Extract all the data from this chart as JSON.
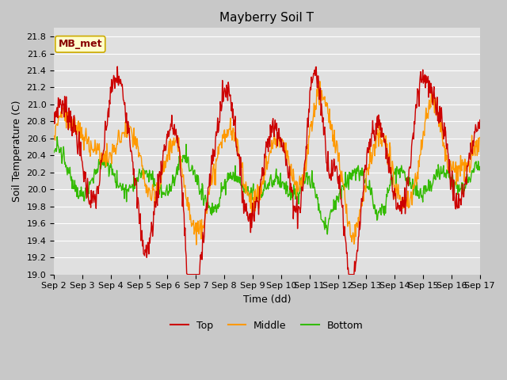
{
  "title": "Mayberry Soil T",
  "xlabel": "Time (dd)",
  "ylabel": "Soil Temperature (C)",
  "ylim": [
    19.0,
    21.9
  ],
  "xlim": [
    0,
    15
  ],
  "x_tick_labels": [
    "Sep 2",
    "Sep 3",
    "Sep 4",
    "Sep 5",
    "Sep 6",
    "Sep 7",
    "Sep 8",
    "Sep 9",
    "Sep 10",
    "Sep 11",
    "Sep 12",
    "Sep 13",
    "Sep 14",
    "Sep 15",
    "Sep 16",
    "Sep 17"
  ],
  "legend_entries": [
    "Top",
    "Middle",
    "Bottom"
  ],
  "line_colors": [
    "#cc0000",
    "#ff9900",
    "#33bb00"
  ],
  "annotation_text": "MB_met",
  "annotation_color": "#880000",
  "annotation_bg": "#ffffcc",
  "annotation_border": "#ccaa00",
  "fig_bg": "#c8c8c8",
  "plot_bg": "#e0e0e0",
  "grid_color": "#ffffff",
  "title_fontsize": 11,
  "axis_fontsize": 9,
  "tick_fontsize": 8,
  "legend_fontsize": 9
}
